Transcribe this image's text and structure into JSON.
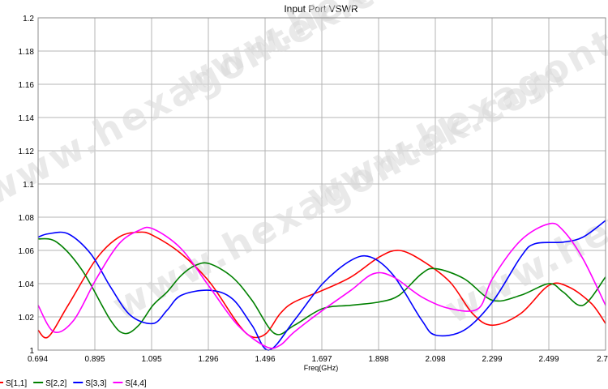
{
  "watermark": "www.hexagontek.com",
  "chart_data": {
    "type": "line",
    "title": "Input Port VSWR",
    "xlabel": "Freq(GHz)",
    "ylabel": "",
    "xlim": [
      0.694,
      2.7
    ],
    "ylim": [
      1.0,
      1.2
    ],
    "x_ticks": [
      "0.694",
      "0.895",
      "1.095",
      "1.296",
      "1.496",
      "1.697",
      "1.898",
      "2.098",
      "2.299",
      "2.499",
      "2.7"
    ],
    "y_ticks": [
      "1",
      "1.02",
      "1.04",
      "1.06",
      "1.08",
      "1.1",
      "1.12",
      "1.14",
      "1.16",
      "1.18",
      "1.2"
    ],
    "grid": true,
    "legend_position": "bottom-left",
    "series": [
      {
        "name": "S[1,1]",
        "color": "#ff0000",
        "x": [
          0.694,
          0.73,
          0.8,
          0.9,
          0.98,
          1.05,
          1.1,
          1.2,
          1.3,
          1.4,
          1.45,
          1.5,
          1.55,
          1.6,
          1.7,
          1.8,
          1.9,
          1.97,
          2.05,
          2.15,
          2.23,
          2.3,
          2.4,
          2.5,
          2.57,
          2.65,
          2.7
        ],
        "y": [
          1.012,
          1.008,
          1.027,
          1.055,
          1.068,
          1.071,
          1.069,
          1.058,
          1.041,
          1.016,
          1.008,
          1.01,
          1.022,
          1.029,
          1.036,
          1.044,
          1.056,
          1.06,
          1.054,
          1.041,
          1.022,
          1.015,
          1.022,
          1.039,
          1.038,
          1.028,
          1.016
        ]
      },
      {
        "name": "S[2,2]",
        "color": "#008000",
        "x": [
          0.694,
          0.76,
          0.85,
          0.95,
          1.0,
          1.05,
          1.1,
          1.15,
          1.2,
          1.25,
          1.3,
          1.38,
          1.45,
          1.53,
          1.6,
          1.7,
          1.8,
          1.9,
          1.97,
          2.05,
          2.1,
          2.2,
          2.3,
          2.4,
          2.5,
          2.55,
          2.62,
          2.7
        ],
        "y": [
          1.067,
          1.065,
          1.048,
          1.018,
          1.01,
          1.015,
          1.027,
          1.035,
          1.045,
          1.051,
          1.052,
          1.044,
          1.03,
          1.01,
          1.015,
          1.025,
          1.027,
          1.029,
          1.033,
          1.046,
          1.049,
          1.043,
          1.03,
          1.033,
          1.04,
          1.035,
          1.027,
          1.044
        ]
      },
      {
        "name": "S[3,3]",
        "color": "#0000ff",
        "x": [
          0.694,
          0.73,
          0.8,
          0.88,
          0.95,
          1.02,
          1.1,
          1.15,
          1.2,
          1.3,
          1.38,
          1.45,
          1.51,
          1.6,
          1.7,
          1.8,
          1.87,
          1.95,
          2.05,
          2.1,
          2.2,
          2.3,
          2.4,
          2.45,
          2.55,
          2.62,
          2.7
        ],
        "y": [
          1.068,
          1.07,
          1.07,
          1.058,
          1.038,
          1.021,
          1.016,
          1.024,
          1.033,
          1.036,
          1.031,
          1.015,
          1.0,
          1.018,
          1.04,
          1.054,
          1.056,
          1.045,
          1.018,
          1.009,
          1.012,
          1.029,
          1.056,
          1.064,
          1.065,
          1.068,
          1.078
        ]
      },
      {
        "name": "S[4,4]",
        "color": "#ff00ff",
        "x": [
          0.694,
          0.75,
          0.82,
          0.9,
          0.98,
          1.05,
          1.1,
          1.2,
          1.3,
          1.4,
          1.5,
          1.55,
          1.6,
          1.7,
          1.8,
          1.88,
          1.95,
          2.05,
          2.15,
          2.25,
          2.3,
          2.4,
          2.5,
          2.55,
          2.62,
          2.7
        ],
        "y": [
          1.027,
          1.011,
          1.018,
          1.043,
          1.064,
          1.072,
          1.073,
          1.061,
          1.038,
          1.015,
          1.002,
          1.003,
          1.011,
          1.024,
          1.036,
          1.046,
          1.044,
          1.032,
          1.025,
          1.025,
          1.043,
          1.066,
          1.076,
          1.072,
          1.055,
          1.027
        ]
      }
    ]
  }
}
